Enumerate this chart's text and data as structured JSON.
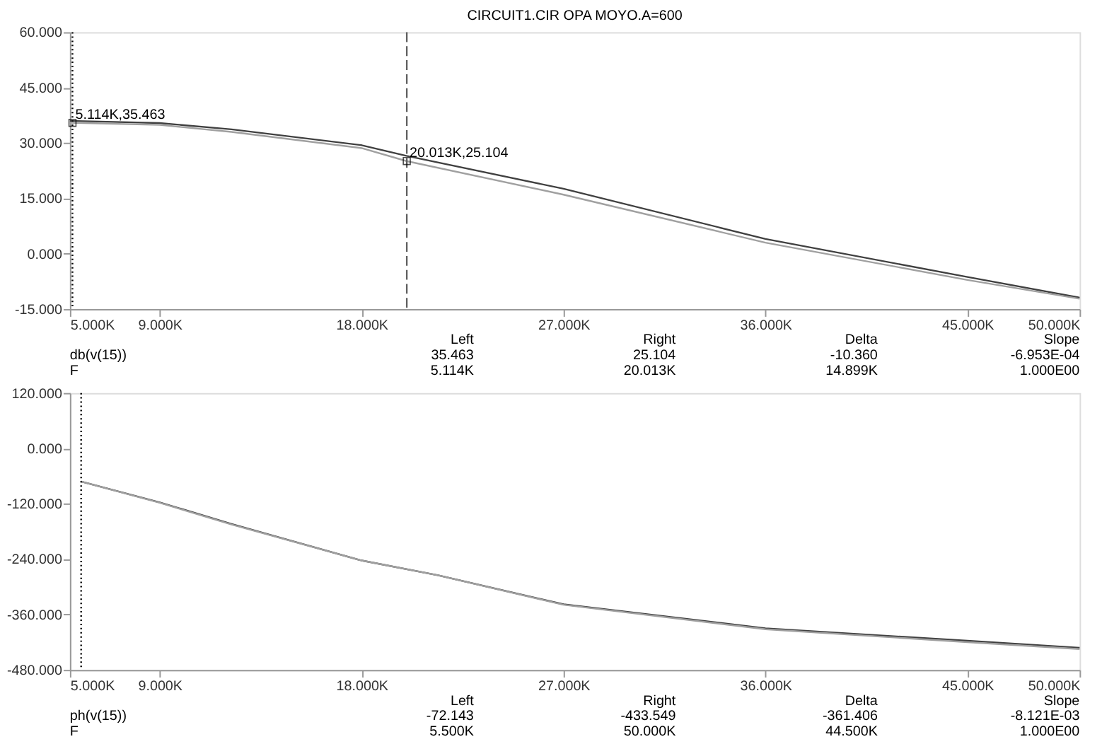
{
  "chart_data": [
    {
      "type": "line",
      "title": "CIRCUIT1.CIR OPA MOYO.A=600",
      "x": [
        5000,
        9000,
        12200,
        18000,
        20000,
        27000,
        36000,
        45000,
        50000
      ],
      "series": [
        {
          "color": "#404040",
          "values": [
            36.0,
            35.4,
            33.7,
            29.4,
            26.5,
            17.6,
            4.0,
            -6.3,
            -11.9
          ]
        },
        {
          "color": "#a0a0a0",
          "values": [
            35.5,
            34.9,
            33.0,
            28.6,
            25.1,
            16.0,
            3.0,
            -7.1,
            -12.2
          ]
        }
      ],
      "xlim": [
        5000,
        50000
      ],
      "xticks": [
        {
          "value": 5000,
          "label": "5.000K"
        },
        {
          "value": 9000,
          "label": "9.000K"
        },
        {
          "value": 18000,
          "label": "18.000K"
        },
        {
          "value": 27000,
          "label": "27.000K"
        },
        {
          "value": 36000,
          "label": "36.000K"
        },
        {
          "value": 45000,
          "label": "45.000K"
        },
        {
          "value": 50000,
          "label": "50.000K"
        }
      ],
      "ylim": [
        -15,
        60
      ],
      "yticks": [
        {
          "value": -15,
          "label": "-15.000"
        },
        {
          "value": 0,
          "label": "0.000"
        },
        {
          "value": 15,
          "label": "15.000"
        },
        {
          "value": 30,
          "label": "30.000"
        },
        {
          "value": 45,
          "label": "45.000"
        },
        {
          "value": 60,
          "label": "60.000"
        }
      ],
      "grid": false,
      "legend": false,
      "ref_lines": [
        {
          "axis": "x",
          "value": 5114,
          "line_style": "dotted",
          "color": "#000000"
        },
        {
          "axis": "x",
          "value": 20013,
          "line_style": "dashed",
          "color": "#606060"
        }
      ],
      "annotations": [
        {
          "text": "5.114K,35.463",
          "x": 5114,
          "y": 35.463
        },
        {
          "text": "20.013K,25.104",
          "x": 20013,
          "y": 25.104
        },
        "Left",
        "Right",
        "Delta",
        "Slope",
        "db(v(15))",
        "35.463",
        "25.104",
        "-10.360",
        "-6.953E-04",
        "F",
        "5.114K",
        "20.013K",
        "14.899K",
        "1.000E00"
      ]
    },
    {
      "type": "line",
      "x": [
        5500,
        9000,
        12200,
        18000,
        21400,
        27000,
        36000,
        45000,
        50000
      ],
      "series": [
        {
          "color": "#404040",
          "values": [
            -72,
            -117,
            -164,
            -243,
            -275,
            -338,
            -390,
            -417,
            -432
          ]
        },
        {
          "color": "#a0a0a0",
          "values": [
            -72,
            -118,
            -165,
            -243,
            -275,
            -339,
            -392,
            -420,
            -435
          ]
        }
      ],
      "xlim": [
        5000,
        50000
      ],
      "xticks": [
        {
          "value": 5000,
          "label": "5.000K"
        },
        {
          "value": 9000,
          "label": "9.000K"
        },
        {
          "value": 18000,
          "label": "18.000K"
        },
        {
          "value": 27000,
          "label": "27.000K"
        },
        {
          "value": 36000,
          "label": "36.000K"
        },
        {
          "value": 45000,
          "label": "45.000K"
        },
        {
          "value": 50000,
          "label": "50.000K"
        }
      ],
      "ylim": [
        -480,
        120
      ],
      "yticks": [
        {
          "value": -480,
          "label": "-480.000"
        },
        {
          "value": -360,
          "label": "-360.000"
        },
        {
          "value": -240,
          "label": "-240.000"
        },
        {
          "value": -120,
          "label": "-120.000"
        },
        {
          "value": 0,
          "label": "0.000"
        },
        {
          "value": 120,
          "label": "120.000"
        }
      ],
      "grid": false,
      "legend": false,
      "ref_lines": [
        {
          "axis": "x",
          "value": 5500,
          "line_style": "dotted",
          "color": "#000000"
        }
      ],
      "annotations": [
        "Left",
        "Right",
        "Delta",
        "Slope",
        "ph(v(15))",
        "-72.143",
        "-433.549",
        "-361.406",
        "-8.121E-03",
        "F",
        "5.500K",
        "50.000K",
        "44.500K",
        "1.000E00"
      ]
    }
  ]
}
